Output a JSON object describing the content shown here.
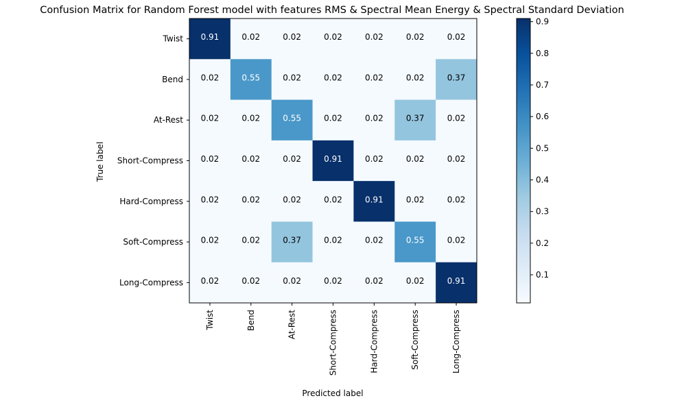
{
  "chart_data": {
    "type": "heatmap",
    "title": "Confusion Matrix for Random Forest model with features RMS & Spectral Mean Energy & Spectral Standard Deviation",
    "xlabel": "Predicted label",
    "ylabel": "True label",
    "x_categories": [
      "Twist",
      "Bend",
      "At-Rest",
      "Short-Compress",
      "Hard-Compress",
      "Soft-Compress",
      "Long-Compress"
    ],
    "y_categories": [
      "Twist",
      "Bend",
      "At-Rest",
      "Short-Compress",
      "Hard-Compress",
      "Soft-Compress",
      "Long-Compress"
    ],
    "values": [
      [
        0.91,
        0.02,
        0.02,
        0.02,
        0.02,
        0.02,
        0.02
      ],
      [
        0.02,
        0.55,
        0.02,
        0.02,
        0.02,
        0.02,
        0.37
      ],
      [
        0.02,
        0.02,
        0.55,
        0.02,
        0.02,
        0.37,
        0.02
      ],
      [
        0.02,
        0.02,
        0.02,
        0.91,
        0.02,
        0.02,
        0.02
      ],
      [
        0.02,
        0.02,
        0.02,
        0.02,
        0.91,
        0.02,
        0.02
      ],
      [
        0.02,
        0.02,
        0.37,
        0.02,
        0.02,
        0.55,
        0.02
      ],
      [
        0.02,
        0.02,
        0.02,
        0.02,
        0.02,
        0.02,
        0.91
      ]
    ],
    "value_labels": [
      [
        "0.91",
        "0.02",
        "0.02",
        "0.02",
        "0.02",
        "0.02",
        "0.02"
      ],
      [
        "0.02",
        "0.55",
        "0.02",
        "0.02",
        "0.02",
        "0.02",
        "0.37"
      ],
      [
        "0.02",
        "0.02",
        "0.55",
        "0.02",
        "0.02",
        "0.37",
        "0.02"
      ],
      [
        "0.02",
        "0.02",
        "0.02",
        "0.91",
        "0.02",
        "0.02",
        "0.02"
      ],
      [
        "0.02",
        "0.02",
        "0.02",
        "0.02",
        "0.91",
        "0.02",
        "0.02"
      ],
      [
        "0.02",
        "0.02",
        "0.37",
        "0.02",
        "0.02",
        "0.55",
        "0.02"
      ],
      [
        "0.02",
        "0.02",
        "0.02",
        "0.02",
        "0.02",
        "0.02",
        "0.91"
      ]
    ],
    "colormap": "Blues",
    "colorbar": {
      "range": [
        0.0112,
        0.91
      ],
      "ticks": [
        0.1,
        0.2,
        0.3,
        0.4,
        0.5,
        0.6,
        0.7,
        0.8,
        0.9
      ],
      "tick_labels": [
        "0.1",
        "0.2",
        "0.3",
        "0.4",
        "0.5",
        "0.6",
        "0.7",
        "0.8",
        "0.9"
      ],
      "placement": "right"
    },
    "text_colors": {
      "dark_cell_text": "#ffffff",
      "light_cell_text": "#000000"
    },
    "grid": false
  }
}
